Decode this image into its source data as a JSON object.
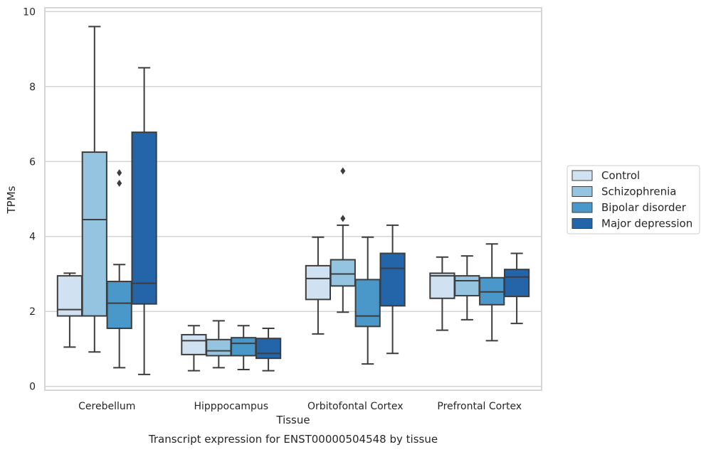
{
  "chart_data": {
    "type": "box",
    "title": "Transcript expression for ENST00000504548 by tissue",
    "xlabel": "Tissue",
    "ylabel": "TPMs",
    "ylim": [
      -0.1,
      10.1
    ],
    "yticks": [
      0,
      2,
      4,
      6,
      8,
      10
    ],
    "grid": true,
    "legend_position": "right",
    "categories": [
      "Cerebellum",
      "Hipppocampus",
      "Orbitofontal Cortex",
      "Prefrontal Cortex"
    ],
    "series": [
      {
        "name": "Control",
        "color": "#d0e1f2",
        "boxes": [
          {
            "whislo": 1.05,
            "q1": 1.88,
            "med": 2.05,
            "q3": 2.95,
            "whishi": 3.02,
            "fliers": []
          },
          {
            "whislo": 0.42,
            "q1": 0.85,
            "med": 1.22,
            "q3": 1.38,
            "whishi": 1.62,
            "fliers": []
          },
          {
            "whislo": 1.4,
            "q1": 2.32,
            "med": 2.88,
            "q3": 3.22,
            "whishi": 3.98,
            "fliers": []
          },
          {
            "whislo": 1.5,
            "q1": 2.35,
            "med": 2.95,
            "q3": 3.02,
            "whishi": 3.45,
            "fliers": []
          }
        ]
      },
      {
        "name": "Schizophrenia",
        "color": "#94c4df",
        "boxes": [
          {
            "whislo": 0.92,
            "q1": 1.88,
            "med": 4.45,
            "q3": 6.25,
            "whishi": 9.6,
            "fliers": []
          },
          {
            "whislo": 0.5,
            "q1": 0.82,
            "med": 0.95,
            "q3": 1.25,
            "whishi": 1.75,
            "fliers": []
          },
          {
            "whislo": 1.98,
            "q1": 2.68,
            "med": 3.0,
            "q3": 3.38,
            "whishi": 4.3,
            "fliers": [
              4.48,
              5.75
            ]
          },
          {
            "whislo": 1.78,
            "q1": 2.42,
            "med": 2.82,
            "q3": 2.95,
            "whishi": 3.48,
            "fliers": []
          }
        ]
      },
      {
        "name": "Bipolar disorder",
        "color": "#4a98c9",
        "boxes": [
          {
            "whislo": 0.5,
            "q1": 1.55,
            "med": 2.22,
            "q3": 2.8,
            "whishi": 3.25,
            "fliers": [
              5.42,
              5.7
            ]
          },
          {
            "whislo": 0.45,
            "q1": 0.82,
            "med": 1.15,
            "q3": 1.3,
            "whishi": 1.62,
            "fliers": []
          },
          {
            "whislo": 0.6,
            "q1": 1.6,
            "med": 1.88,
            "q3": 2.85,
            "whishi": 3.98,
            "fliers": []
          },
          {
            "whislo": 1.22,
            "q1": 2.18,
            "med": 2.52,
            "q3": 2.9,
            "whishi": 3.8,
            "fliers": []
          }
        ]
      },
      {
        "name": "Major depression",
        "color": "#2464a8",
        "boxes": [
          {
            "whislo": 0.32,
            "q1": 2.2,
            "med": 2.75,
            "q3": 6.78,
            "whishi": 8.5,
            "fliers": []
          },
          {
            "whislo": 0.42,
            "q1": 0.75,
            "med": 0.88,
            "q3": 1.28,
            "whishi": 1.55,
            "fliers": []
          },
          {
            "whislo": 0.88,
            "q1": 2.15,
            "med": 3.15,
            "q3": 3.55,
            "whishi": 4.3,
            "fliers": []
          },
          {
            "whislo": 1.68,
            "q1": 2.4,
            "med": 2.92,
            "q3": 3.12,
            "whishi": 3.55,
            "fliers": []
          }
        ]
      }
    ]
  }
}
